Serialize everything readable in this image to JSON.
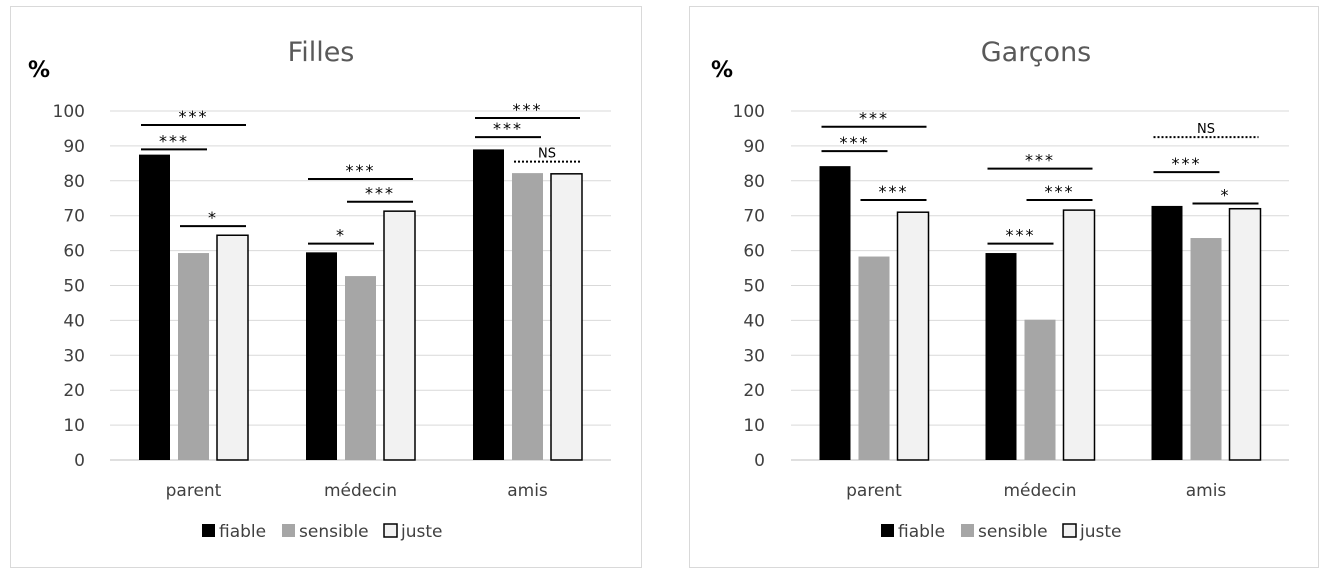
{
  "chart_data": [
    {
      "type": "bar",
      "title": "Filles",
      "ylabel": "%",
      "ylim": [
        0,
        100
      ],
      "yticks": [
        "0",
        "10",
        "20",
        "30",
        "40",
        "50",
        "60",
        "70",
        "80",
        "90",
        "100"
      ],
      "categories": [
        "parent",
        "médecin",
        "amis"
      ],
      "grid": true,
      "legend": "bottom",
      "series": [
        {
          "name": "fiable",
          "color": "#000000",
          "values": [
            87.5,
            59.5,
            89
          ]
        },
        {
          "name": "sensible",
          "color": "#a6a6a6",
          "values": [
            59.3,
            52.7,
            82.2
          ]
        },
        {
          "name": "juste",
          "color": "#f2f2f2",
          "values": [
            64.4,
            71.3,
            82
          ]
        }
      ],
      "annotations": [
        {
          "category": 0,
          "from": 0,
          "to": 1,
          "label": "***",
          "y": 89,
          "style": "solid"
        },
        {
          "category": 0,
          "from": 0,
          "to": 2,
          "label": "***",
          "y": 96,
          "style": "solid"
        },
        {
          "category": 0,
          "from": 1,
          "to": 2,
          "label": "*",
          "y": 67,
          "style": "solid"
        },
        {
          "category": 1,
          "from": 0,
          "to": 1,
          "label": "*",
          "y": 62,
          "style": "solid"
        },
        {
          "category": 1,
          "from": 0,
          "to": 2,
          "label": "***",
          "y": 80.5,
          "style": "solid"
        },
        {
          "category": 1,
          "from": 1,
          "to": 2,
          "label": "***",
          "y": 74,
          "style": "solid"
        },
        {
          "category": 2,
          "from": 0,
          "to": 1,
          "label": "***",
          "y": 92.5,
          "style": "solid"
        },
        {
          "category": 2,
          "from": 0,
          "to": 2,
          "label": "***",
          "y": 98,
          "style": "solid"
        },
        {
          "category": 2,
          "from": 1,
          "to": 2,
          "label": "NS",
          "y": 85.5,
          "style": "dotted"
        }
      ]
    },
    {
      "type": "bar",
      "title": "Garçons",
      "ylabel": "%",
      "ylim": [
        0,
        100
      ],
      "yticks": [
        "0",
        "10",
        "20",
        "30",
        "40",
        "50",
        "60",
        "70",
        "80",
        "90",
        "100"
      ],
      "categories": [
        "parent",
        "médecin",
        "amis"
      ],
      "grid": true,
      "legend": "bottom",
      "series": [
        {
          "name": "fiable",
          "color": "#000000",
          "values": [
            84.2,
            59.3,
            72.8
          ]
        },
        {
          "name": "sensible",
          "color": "#a6a6a6",
          "values": [
            58.3,
            40.2,
            63.6
          ]
        },
        {
          "name": "juste",
          "color": "#f2f2f2",
          "values": [
            71,
            71.6,
            72
          ]
        }
      ],
      "annotations": [
        {
          "category": 0,
          "from": 0,
          "to": 1,
          "label": "***",
          "y": 88.5,
          "style": "solid"
        },
        {
          "category": 0,
          "from": 0,
          "to": 2,
          "label": "***",
          "y": 95.5,
          "style": "solid"
        },
        {
          "category": 0,
          "from": 1,
          "to": 2,
          "label": "***",
          "y": 74.5,
          "style": "solid"
        },
        {
          "category": 1,
          "from": 0,
          "to": 1,
          "label": "***",
          "y": 62,
          "style": "solid"
        },
        {
          "category": 1,
          "from": 0,
          "to": 2,
          "label": "***",
          "y": 83.5,
          "style": "solid"
        },
        {
          "category": 1,
          "from": 1,
          "to": 2,
          "label": "***",
          "y": 74.5,
          "style": "solid"
        },
        {
          "category": 2,
          "from": 0,
          "to": 1,
          "label": "***",
          "y": 82.5,
          "style": "solid"
        },
        {
          "category": 2,
          "from": 0,
          "to": 2,
          "label": "NS",
          "y": 92.5,
          "style": "dotted"
        },
        {
          "category": 2,
          "from": 1,
          "to": 2,
          "label": "*",
          "y": 73.5,
          "style": "solid"
        }
      ]
    }
  ]
}
